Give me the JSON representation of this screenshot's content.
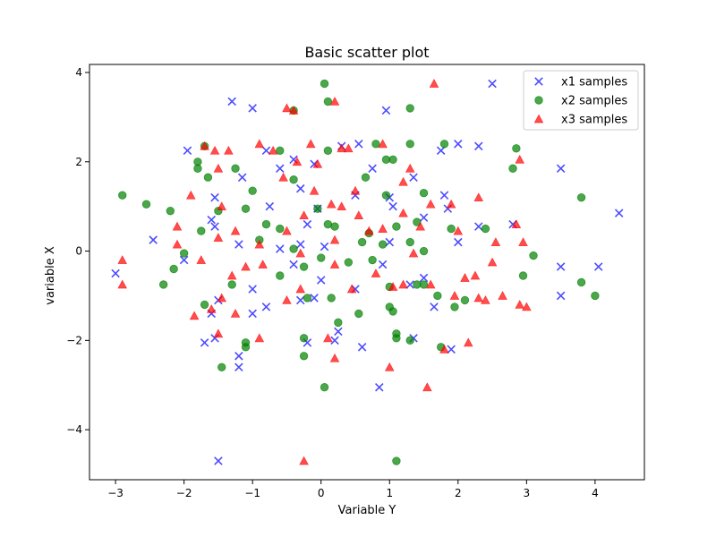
{
  "chart_data": {
    "type": "scatter",
    "title": "Basic scatter plot",
    "xlabel": "Variable Y",
    "ylabel": "variable X",
    "xlim": [
      -3.38,
      4.72
    ],
    "ylim": [
      -5.12,
      4.18
    ],
    "xticks": [
      -3,
      -2,
      -1,
      0,
      1,
      2,
      3,
      4
    ],
    "yticks": [
      -4,
      -2,
      0,
      2,
      4
    ],
    "xtick_labels": [
      "−3",
      "−2",
      "−1",
      "0",
      "1",
      "2",
      "3",
      "4"
    ],
    "ytick_labels": [
      "−4",
      "−2",
      "0",
      "2",
      "4"
    ],
    "grid": false,
    "legend_position": "top-right",
    "series": [
      {
        "name": "x1 samples",
        "marker": "x",
        "color": "#0000ff",
        "points": [
          [
            -1.3,
            3.35
          ],
          [
            -1.0,
            3.2
          ],
          [
            0.95,
            3.15
          ],
          [
            2.5,
            3.75
          ],
          [
            -1.95,
            2.25
          ],
          [
            -0.8,
            2.25
          ],
          [
            0.3,
            2.35
          ],
          [
            0.55,
            2.4
          ],
          [
            1.75,
            2.25
          ],
          [
            2.0,
            2.4
          ],
          [
            2.3,
            2.35
          ],
          [
            -0.6,
            1.85
          ],
          [
            -0.4,
            2.05
          ],
          [
            -0.1,
            1.95
          ],
          [
            0.75,
            1.85
          ],
          [
            1.35,
            1.65
          ],
          [
            3.5,
            1.85
          ],
          [
            -1.15,
            1.65
          ],
          [
            -1.55,
            1.2
          ],
          [
            -0.3,
            1.4
          ],
          [
            0.5,
            1.25
          ],
          [
            1.0,
            1.2
          ],
          [
            1.8,
            1.25
          ],
          [
            -0.05,
            0.95
          ],
          [
            -0.75,
            1.0
          ],
          [
            -0.2,
            0.6
          ],
          [
            -1.55,
            0.55
          ],
          [
            -1.6,
            0.7
          ],
          [
            1.05,
            1.0
          ],
          [
            1.5,
            0.75
          ],
          [
            1.85,
            0.95
          ],
          [
            2.3,
            0.55
          ],
          [
            2.8,
            0.6
          ],
          [
            4.35,
            0.85
          ],
          [
            -2.45,
            0.25
          ],
          [
            -1.2,
            0.15
          ],
          [
            -0.6,
            0.05
          ],
          [
            -0.3,
            0.15
          ],
          [
            0.05,
            0.1
          ],
          [
            1.0,
            0.2
          ],
          [
            2.0,
            0.2
          ],
          [
            -3.0,
            -0.5
          ],
          [
            -2.0,
            -0.2
          ],
          [
            -1.0,
            -0.85
          ],
          [
            -0.4,
            -0.3
          ],
          [
            0.0,
            -0.65
          ],
          [
            0.5,
            -0.85
          ],
          [
            0.9,
            -0.3
          ],
          [
            1.3,
            -0.75
          ],
          [
            1.5,
            -0.6
          ],
          [
            3.5,
            -0.35
          ],
          [
            4.05,
            -0.35
          ],
          [
            -1.5,
            -1.1
          ],
          [
            -1.6,
            -1.4
          ],
          [
            -1.0,
            -1.4
          ],
          [
            -0.8,
            -1.25
          ],
          [
            -0.1,
            -1.05
          ],
          [
            -0.3,
            -1.1
          ],
          [
            1.65,
            -1.25
          ],
          [
            3.5,
            -1.0
          ],
          [
            -1.7,
            -2.05
          ],
          [
            -1.55,
            -1.95
          ],
          [
            -1.2,
            -2.35
          ],
          [
            -1.2,
            -2.6
          ],
          [
            -0.2,
            -2.05
          ],
          [
            0.2,
            -2.0
          ],
          [
            0.25,
            -1.8
          ],
          [
            0.6,
            -2.15
          ],
          [
            1.35,
            -1.95
          ],
          [
            1.9,
            -2.2
          ],
          [
            0.85,
            -3.05
          ],
          [
            -1.5,
            -4.7
          ]
        ]
      },
      {
        "name": "x2 samples",
        "marker": "o",
        "color": "#008000",
        "points": [
          [
            0.05,
            3.75
          ],
          [
            0.1,
            3.35
          ],
          [
            1.3,
            3.2
          ],
          [
            -0.4,
            3.15
          ],
          [
            -1.7,
            2.35
          ],
          [
            -0.6,
            2.25
          ],
          [
            0.1,
            2.25
          ],
          [
            0.8,
            2.4
          ],
          [
            1.3,
            2.4
          ],
          [
            1.8,
            2.4
          ],
          [
            2.85,
            2.3
          ],
          [
            -1.8,
            2.0
          ],
          [
            -1.8,
            1.85
          ],
          [
            -1.25,
            1.85
          ],
          [
            0.95,
            2.05
          ],
          [
            1.05,
            2.05
          ],
          [
            2.8,
            1.85
          ],
          [
            -1.65,
            1.65
          ],
          [
            -0.4,
            1.6
          ],
          [
            0.65,
            1.65
          ],
          [
            1.5,
            1.3
          ],
          [
            -1.0,
            1.35
          ],
          [
            -2.9,
            1.25
          ],
          [
            -2.55,
            1.05
          ],
          [
            -2.2,
            0.9
          ],
          [
            -1.5,
            0.9
          ],
          [
            -1.1,
            0.95
          ],
          [
            -0.05,
            0.95
          ],
          [
            0.95,
            1.25
          ],
          [
            3.8,
            1.2
          ],
          [
            -1.75,
            0.45
          ],
          [
            -0.8,
            0.6
          ],
          [
            -0.6,
            0.5
          ],
          [
            0.1,
            0.6
          ],
          [
            0.2,
            0.55
          ],
          [
            0.7,
            0.4
          ],
          [
            1.1,
            0.55
          ],
          [
            1.4,
            0.65
          ],
          [
            1.9,
            0.5
          ],
          [
            2.4,
            0.5
          ],
          [
            -2.0,
            -0.05
          ],
          [
            -0.9,
            0.25
          ],
          [
            -0.4,
            0.05
          ],
          [
            0.0,
            -0.15
          ],
          [
            0.6,
            0.2
          ],
          [
            0.9,
            0.15
          ],
          [
            1.3,
            0.2
          ],
          [
            1.5,
            0.0
          ],
          [
            3.1,
            -0.1
          ],
          [
            -2.15,
            -0.4
          ],
          [
            -2.3,
            -0.75
          ],
          [
            -1.3,
            -0.75
          ],
          [
            -0.6,
            -0.55
          ],
          [
            -0.25,
            -0.35
          ],
          [
            0.4,
            -0.25
          ],
          [
            0.75,
            -0.2
          ],
          [
            1.0,
            -0.8
          ],
          [
            1.4,
            -0.75
          ],
          [
            1.5,
            -0.75
          ],
          [
            2.95,
            -0.55
          ],
          [
            3.8,
            -0.7
          ],
          [
            4.0,
            -1.0
          ],
          [
            -1.7,
            -1.2
          ],
          [
            -0.2,
            -1.05
          ],
          [
            0.15,
            -1.05
          ],
          [
            0.55,
            -1.4
          ],
          [
            1.0,
            -1.25
          ],
          [
            1.05,
            -1.35
          ],
          [
            1.7,
            -1.0
          ],
          [
            2.1,
            -1.1
          ],
          [
            1.95,
            -1.25
          ],
          [
            -1.1,
            -2.05
          ],
          [
            -1.1,
            -2.15
          ],
          [
            -0.25,
            -1.95
          ],
          [
            0.25,
            -1.6
          ],
          [
            1.1,
            -1.85
          ],
          [
            1.1,
            -1.95
          ],
          [
            1.3,
            -2.0
          ],
          [
            1.75,
            -2.15
          ],
          [
            -0.25,
            -2.35
          ],
          [
            -1.45,
            -2.6
          ],
          [
            0.05,
            -3.05
          ],
          [
            1.1,
            -4.7
          ]
        ]
      },
      {
        "name": "x3 samples",
        "marker": "^",
        "color": "#ff0000",
        "points": [
          [
            1.65,
            3.75
          ],
          [
            -0.5,
            3.2
          ],
          [
            -0.4,
            3.15
          ],
          [
            0.2,
            3.35
          ],
          [
            -1.7,
            2.35
          ],
          [
            -1.35,
            2.25
          ],
          [
            -1.55,
            2.25
          ],
          [
            -0.9,
            2.4
          ],
          [
            -0.15,
            2.4
          ],
          [
            0.9,
            2.4
          ],
          [
            0.3,
            2.3
          ],
          [
            -0.7,
            2.25
          ],
          [
            0.4,
            2.3
          ],
          [
            -0.55,
            1.65
          ],
          [
            -0.35,
            2.0
          ],
          [
            -0.05,
            1.95
          ],
          [
            1.3,
            1.85
          ],
          [
            1.2,
            1.55
          ],
          [
            2.9,
            2.05
          ],
          [
            -1.5,
            1.85
          ],
          [
            -0.1,
            1.35
          ],
          [
            0.5,
            1.35
          ],
          [
            1.2,
            0.85
          ],
          [
            1.6,
            1.05
          ],
          [
            -1.9,
            1.25
          ],
          [
            -1.45,
            1.0
          ],
          [
            -1.25,
            0.45
          ],
          [
            -0.5,
            0.45
          ],
          [
            -0.25,
            0.8
          ],
          [
            0.15,
            1.05
          ],
          [
            0.3,
            1.0
          ],
          [
            0.55,
            0.8
          ],
          [
            0.7,
            0.45
          ],
          [
            0.9,
            0.5
          ],
          [
            1.9,
            1.05
          ],
          [
            2.3,
            1.2
          ],
          [
            -2.1,
            0.55
          ],
          [
            -2.1,
            0.15
          ],
          [
            -1.5,
            0.3
          ],
          [
            -0.9,
            0.15
          ],
          [
            0.2,
            0.25
          ],
          [
            1.45,
            0.55
          ],
          [
            2.0,
            0.45
          ],
          [
            2.55,
            0.2
          ],
          [
            2.85,
            0.6
          ],
          [
            2.95,
            0.2
          ],
          [
            -2.9,
            -0.2
          ],
          [
            -2.9,
            -0.75
          ],
          [
            -1.75,
            -0.2
          ],
          [
            -1.1,
            -0.35
          ],
          [
            -0.85,
            -0.3
          ],
          [
            -0.3,
            -0.05
          ],
          [
            0.2,
            -0.3
          ],
          [
            0.8,
            -0.5
          ],
          [
            1.2,
            -0.75
          ],
          [
            1.35,
            -0.05
          ],
          [
            1.6,
            -0.75
          ],
          [
            2.1,
            -0.6
          ],
          [
            2.25,
            -0.55
          ],
          [
            2.5,
            -0.25
          ],
          [
            -1.3,
            -0.55
          ],
          [
            -1.6,
            -1.3
          ],
          [
            -1.45,
            -1.05
          ],
          [
            -1.25,
            -1.4
          ],
          [
            -1.85,
            -1.45
          ],
          [
            -0.5,
            -1.1
          ],
          [
            -0.3,
            -0.85
          ],
          [
            0.45,
            -0.85
          ],
          [
            1.05,
            -0.8
          ],
          [
            1.95,
            -1.0
          ],
          [
            2.3,
            -1.05
          ],
          [
            2.4,
            -1.1
          ],
          [
            2.65,
            -1.0
          ],
          [
            2.9,
            -1.2
          ],
          [
            3.0,
            -1.25
          ],
          [
            -1.5,
            -1.85
          ],
          [
            -0.9,
            -1.95
          ],
          [
            0.1,
            -1.95
          ],
          [
            0.2,
            -2.4
          ],
          [
            1.8,
            -2.2
          ],
          [
            2.15,
            -2.05
          ],
          [
            1.0,
            -2.6
          ],
          [
            1.55,
            -3.05
          ],
          [
            -0.25,
            -4.7
          ]
        ]
      }
    ]
  }
}
